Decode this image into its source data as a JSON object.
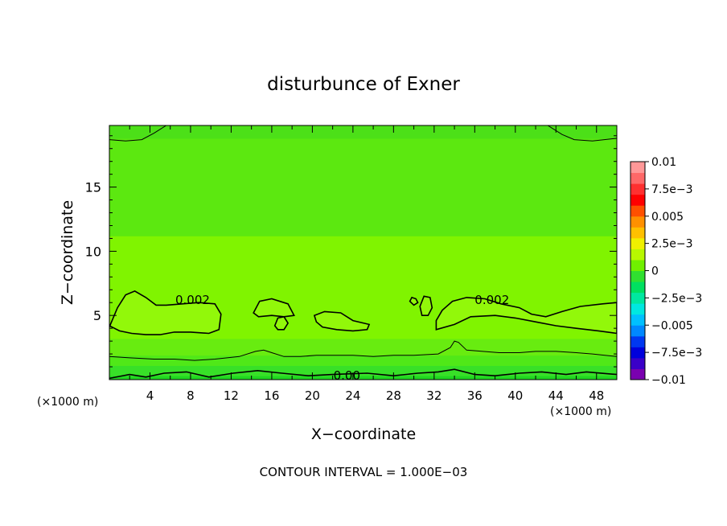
{
  "chart_data": {
    "type": "heatmap",
    "title": "disturbunce of Exner",
    "xlabel": "X−coordinate",
    "ylabel": "Z−coordinate",
    "x_unit_left": "(×1000 m)",
    "x_unit_right": "(×1000 m)",
    "footer": "CONTOUR INTERVAL = 1.000E−03",
    "xlim": [
      0,
      50
    ],
    "ylim": [
      0,
      19.8
    ],
    "x_ticks": [
      {
        "value": 4,
        "label": "4"
      },
      {
        "value": 8,
        "label": "8"
      },
      {
        "value": 12,
        "label": "12"
      },
      {
        "value": 16,
        "label": "16"
      },
      {
        "value": 20,
        "label": "20"
      },
      {
        "value": 24,
        "label": "24"
      },
      {
        "value": 28,
        "label": "28"
      },
      {
        "value": 32,
        "label": "32"
      },
      {
        "value": 36,
        "label": "36"
      },
      {
        "value": 40,
        "label": "40"
      },
      {
        "value": 44,
        "label": "44"
      },
      {
        "value": 48,
        "label": "48"
      }
    ],
    "y_ticks": [
      {
        "value": 5,
        "label": "5"
      },
      {
        "value": 10,
        "label": "10"
      },
      {
        "value": 15,
        "label": "15"
      }
    ],
    "colorbar": {
      "min": -0.01,
      "max": 0.01,
      "ticks": [
        {
          "value": 0.01,
          "label": "0.01"
        },
        {
          "value": 0.0075,
          "label": "7.5e−3"
        },
        {
          "value": 0.005,
          "label": "0.005"
        },
        {
          "value": 0.0025,
          "label": "2.5e−3"
        },
        {
          "value": 0,
          "label": "0"
        },
        {
          "value": -0.0025,
          "label": "−2.5e−3"
        },
        {
          "value": -0.005,
          "label": "−0.005"
        },
        {
          "value": -0.0075,
          "label": "−7.5e−3"
        },
        {
          "value": -0.01,
          "label": "−0.01"
        }
      ],
      "colors_bottom_to_top": [
        "#7a00b0",
        "#3a00c8",
        "#0000dc",
        "#0038f0",
        "#0088ff",
        "#00c0ff",
        "#00e8e0",
        "#00e8a0",
        "#00e060",
        "#30e030",
        "#70f000",
        "#b8f800",
        "#f0f000",
        "#ffc000",
        "#ff9000",
        "#ff5000",
        "#ff0000",
        "#ff3030",
        "#ff6868",
        "#ff9898"
      ]
    },
    "field_bands": [
      {
        "z_range": [
          0,
          0.3
        ],
        "value": 0.0001,
        "color": "#20d820"
      },
      {
        "z_range": [
          0.3,
          1.1
        ],
        "value": 0.0004,
        "color": "#38e028"
      },
      {
        "z_range": [
          1.1,
          1.9
        ],
        "value": 0.0008,
        "color": "#50e818"
      },
      {
        "z_range": [
          1.9,
          3.2
        ],
        "value": 0.0013,
        "color": "#68ec10"
      },
      {
        "z_range": [
          3.2,
          11.2
        ],
        "value": 0.0018,
        "color": "#80f400"
      },
      {
        "z_range": [
          11.2,
          18.8
        ],
        "value": 0.0012,
        "color": "#5ce810"
      },
      {
        "z_range": [
          18.8,
          19.8
        ],
        "value": 0.0007,
        "color": "#4ce018"
      }
    ],
    "contours": [
      {
        "label": "0.002",
        "level": 0.002,
        "label_positions": [
          {
            "x": 8.2,
            "z": 6.2
          },
          {
            "x": 37.7,
            "z": 6.2
          }
        ],
        "regions": [
          {
            "name": "left-blob",
            "points": [
              [
                0,
                4.1
              ],
              [
                0.8,
                5.6
              ],
              [
                1.6,
                6.6
              ],
              [
                2.5,
                6.9
              ],
              [
                3.6,
                6.4
              ],
              [
                4.6,
                5.8
              ],
              [
                5.6,
                5.8
              ],
              [
                7.2,
                5.9
              ],
              [
                8.8,
                6.0
              ],
              [
                10.4,
                5.9
              ],
              [
                11.0,
                5.1
              ],
              [
                10.8,
                3.9
              ],
              [
                9.8,
                3.6
              ],
              [
                8.0,
                3.7
              ],
              [
                6.4,
                3.7
              ],
              [
                5.0,
                3.5
              ],
              [
                3.6,
                3.5
              ],
              [
                2.2,
                3.6
              ],
              [
                1.0,
                3.8
              ],
              [
                0,
                4.2
              ]
            ]
          },
          {
            "name": "blob-14",
            "points": [
              [
                14.2,
                5.2
              ],
              [
                14.8,
                6.1
              ],
              [
                16.0,
                6.3
              ],
              [
                17.6,
                5.9
              ],
              [
                18.2,
                5.0
              ],
              [
                17.2,
                4.9
              ],
              [
                16.0,
                5.0
              ],
              [
                14.7,
                4.9
              ]
            ]
          },
          {
            "name": "blob-16",
            "points": [
              [
                16.3,
                4.2
              ],
              [
                16.6,
                4.8
              ],
              [
                17.2,
                4.9
              ],
              [
                17.6,
                4.4
              ],
              [
                17.2,
                3.9
              ],
              [
                16.6,
                3.9
              ]
            ]
          },
          {
            "name": "blob-22",
            "points": [
              [
                20.2,
                5.0
              ],
              [
                21.2,
                5.3
              ],
              [
                22.8,
                5.2
              ],
              [
                24.0,
                4.6
              ],
              [
                25.6,
                4.3
              ],
              [
                25.4,
                3.9
              ],
              [
                24.0,
                3.8
              ],
              [
                22.4,
                3.9
              ],
              [
                21.0,
                4.1
              ],
              [
                20.4,
                4.5
              ]
            ]
          },
          {
            "name": "blob-33",
            "points": [
              [
                32.2,
                3.9
              ],
              [
                32.2,
                4.6
              ],
              [
                32.8,
                5.4
              ],
              [
                33.8,
                6.1
              ],
              [
                35.2,
                6.4
              ],
              [
                37.0,
                6.3
              ],
              [
                38.6,
                5.9
              ],
              [
                40.4,
                5.6
              ],
              [
                41.6,
                5.1
              ],
              [
                43.0,
                4.9
              ],
              [
                44.6,
                5.3
              ],
              [
                46.4,
                5.7
              ],
              [
                48.6,
                5.9
              ],
              [
                50,
                6.0
              ],
              [
                50,
                3.6
              ],
              [
                48.2,
                3.8
              ],
              [
                46.0,
                4.0
              ],
              [
                44.0,
                4.2
              ],
              [
                42.0,
                4.5
              ],
              [
                40.0,
                4.8
              ],
              [
                38.0,
                5.0
              ],
              [
                35.6,
                4.9
              ],
              [
                34.0,
                4.3
              ]
            ]
          },
          {
            "name": "blob-30",
            "points": [
              [
                29.6,
                6.1
              ],
              [
                29.8,
                6.4
              ],
              [
                30.2,
                6.3
              ],
              [
                30.4,
                6.0
              ],
              [
                30.0,
                5.8
              ]
            ]
          },
          {
            "name": "blob-31",
            "points": [
              [
                30.8,
                5.0
              ],
              [
                30.6,
                5.7
              ],
              [
                31.0,
                6.5
              ],
              [
                31.6,
                6.4
              ],
              [
                31.8,
                5.6
              ],
              [
                31.4,
                5.0
              ]
            ]
          }
        ]
      },
      {
        "label": "",
        "level": 0.001,
        "lines": [
          {
            "name": "upper-left-corner",
            "points": [
              [
                0,
                18.7
              ],
              [
                1.6,
                18.6
              ],
              [
                3.2,
                18.7
              ],
              [
                4.4,
                19.2
              ],
              [
                5.6,
                19.8
              ]
            ]
          },
          {
            "name": "upper-right-corner",
            "points": [
              [
                43.2,
                19.8
              ],
              [
                44.6,
                19.1
              ],
              [
                45.8,
                18.7
              ],
              [
                47.6,
                18.6
              ],
              [
                50,
                18.8
              ]
            ]
          },
          {
            "name": "lower-wavy",
            "points": [
              [
                0,
                1.8
              ],
              [
                2.0,
                1.7
              ],
              [
                4.4,
                1.6
              ],
              [
                6.4,
                1.6
              ],
              [
                8.4,
                1.5
              ],
              [
                10.4,
                1.6
              ],
              [
                12.8,
                1.8
              ],
              [
                14.4,
                2.2
              ],
              [
                15.2,
                2.3
              ],
              [
                15.6,
                2.2
              ],
              [
                16.0,
                2.1
              ],
              [
                17.2,
                1.8
              ],
              [
                18.8,
                1.8
              ],
              [
                20.4,
                1.9
              ],
              [
                22.0,
                1.9
              ],
              [
                24.0,
                1.9
              ],
              [
                26.0,
                1.8
              ],
              [
                28.0,
                1.9
              ],
              [
                30.0,
                1.9
              ],
              [
                32.4,
                2.0
              ],
              [
                33.6,
                2.5
              ],
              [
                34.0,
                3.0
              ],
              [
                34.4,
                2.9
              ],
              [
                35.2,
                2.3
              ],
              [
                36.8,
                2.2
              ],
              [
                38.4,
                2.1
              ],
              [
                40.4,
                2.1
              ],
              [
                42.0,
                2.2
              ],
              [
                44.0,
                2.2
              ],
              [
                46.0,
                2.1
              ],
              [
                47.6,
                2.0
              ],
              [
                50,
                1.8
              ]
            ]
          }
        ]
      },
      {
        "label": "0.00",
        "level": 0.0,
        "label_positions": [
          {
            "x": 23.4,
            "z": 0.3
          }
        ],
        "lines": [
          {
            "name": "near-ground",
            "points": [
              [
                0,
                0.1
              ],
              [
                2.0,
                0.4
              ],
              [
                3.6,
                0.2
              ],
              [
                5.4,
                0.5
              ],
              [
                7.6,
                0.6
              ],
              [
                9.8,
                0.2
              ],
              [
                12.2,
                0.5
              ],
              [
                14.6,
                0.7
              ],
              [
                17.0,
                0.5
              ],
              [
                19.6,
                0.3
              ],
              [
                22.0,
                0.4
              ],
              [
                25.4,
                0.5
              ],
              [
                28.0,
                0.3
              ],
              [
                30.4,
                0.5
              ],
              [
                32.4,
                0.6
              ],
              [
                34.0,
                0.8
              ],
              [
                36.0,
                0.4
              ],
              [
                38.0,
                0.3
              ],
              [
                40.4,
                0.5
              ],
              [
                42.6,
                0.6
              ],
              [
                45.0,
                0.4
              ],
              [
                47.0,
                0.6
              ],
              [
                50,
                0.4
              ]
            ]
          }
        ]
      }
    ]
  }
}
